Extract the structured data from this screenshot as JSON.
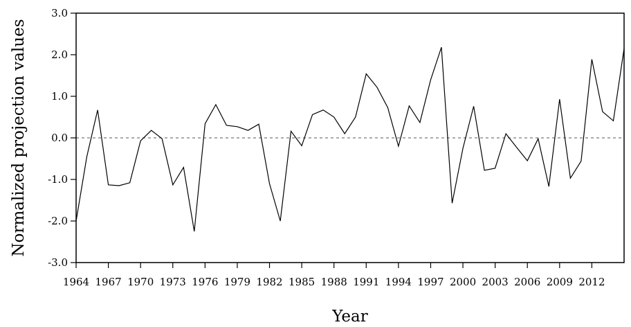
{
  "chart_data": {
    "type": "line",
    "title": "",
    "xlabel": "Year",
    "ylabel": "Normalized projection values",
    "xlim": [
      1964,
      2015
    ],
    "ylim": [
      -3.0,
      3.0
    ],
    "x_ticks": [
      1964,
      1967,
      1970,
      1973,
      1976,
      1979,
      1982,
      1985,
      1988,
      1991,
      1994,
      1997,
      2000,
      2003,
      2006,
      2009,
      2012
    ],
    "x_tick_labels": [
      "1964",
      "1967",
      "1970",
      "1973",
      "1976",
      "1979",
      "1982",
      "1985",
      "1988",
      "1991",
      "1994",
      "1997",
      "2000",
      "2003",
      "2006",
      "2009",
      "2012"
    ],
    "y_ticks": [
      -3.0,
      -2.0,
      -1.0,
      0.0,
      1.0,
      2.0,
      3.0
    ],
    "y_tick_labels": [
      "-3.0",
      "-2.0",
      "-1.0",
      "0.0",
      "1.0",
      "2.0",
      "3.0"
    ],
    "reference_line": {
      "y": 0.0,
      "style": "dashed"
    },
    "grid": false,
    "series": [
      {
        "x": [
          1964,
          1965,
          1966,
          1967,
          1968,
          1969,
          1970,
          1971,
          1972,
          1973,
          1974,
          1975,
          1976,
          1977,
          1978,
          1979,
          1980,
          1981,
          1982,
          1983,
          1984,
          1985,
          1986,
          1987,
          1988,
          1989,
          1990,
          1991,
          1992,
          1993,
          1994,
          1995,
          1996,
          1997,
          1998,
          1999,
          2000,
          2001,
          2002,
          2003,
          2004,
          2005,
          2006,
          2007,
          2008,
          2009,
          2010,
          2011,
          2012,
          2013,
          2014,
          2015
        ],
        "values": [
          -2.0,
          -0.45,
          0.67,
          -1.13,
          -1.15,
          -1.08,
          -0.07,
          0.18,
          -0.02,
          -1.13,
          -0.71,
          -2.25,
          0.34,
          0.8,
          0.3,
          0.27,
          0.18,
          0.33,
          -1.1,
          -2.0,
          0.16,
          -0.19,
          0.56,
          0.67,
          0.5,
          0.1,
          0.5,
          1.54,
          1.22,
          0.73,
          -0.2,
          0.77,
          0.37,
          1.4,
          2.18,
          -1.57,
          -0.25,
          0.76,
          -0.78,
          -0.73,
          0.1,
          -0.23,
          -0.55,
          -0.02,
          -1.17,
          0.93,
          -0.97,
          -0.56,
          1.89,
          0.63,
          0.41,
          2.15
        ]
      }
    ]
  }
}
